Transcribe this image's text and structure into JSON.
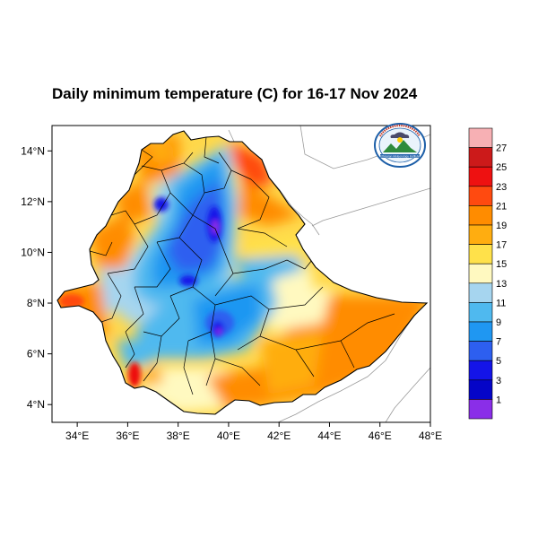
{
  "title": "Daily minimum temperature (C) for 16-17 Nov 2024",
  "map": {
    "lon_range": [
      33,
      48
    ],
    "lat_range": [
      3.3,
      15
    ],
    "x_ticks": [
      "34°E",
      "36°E",
      "38°E",
      "40°E",
      "42°E",
      "44°E",
      "46°E",
      "48°E"
    ],
    "x_tick_values": [
      34,
      36,
      38,
      40,
      42,
      44,
      46,
      48
    ],
    "y_ticks": [
      "14°N",
      "12°N",
      "10°N",
      "8°N",
      "6°N",
      "4°N"
    ],
    "y_tick_values": [
      14,
      12,
      10,
      8,
      6,
      4
    ]
  },
  "colorbar": {
    "labels": [
      "27",
      "25",
      "23",
      "21",
      "19",
      "17",
      "15",
      "13",
      "11",
      "9",
      "7",
      "5",
      "3",
      "1"
    ],
    "colors": [
      "#f7b0b4",
      "#cc1a1a",
      "#ee1111",
      "#ff4a10",
      "#ff8c00",
      "#ffad10",
      "#ffe14a",
      "#fff9c0",
      "#a6d5ef",
      "#4fb9ef",
      "#1f97f2",
      "#2d5ff0",
      "#1414e8",
      "#0505c8",
      "#8a2ee8"
    ]
  },
  "logo": {
    "name": "ethiopian-meteorology-institute-logo",
    "text": "Ethiopian Meteorology Institute"
  },
  "colors": {
    "frame": "#000000",
    "neighbors_border": "#999999",
    "admin_border": "#000000"
  }
}
